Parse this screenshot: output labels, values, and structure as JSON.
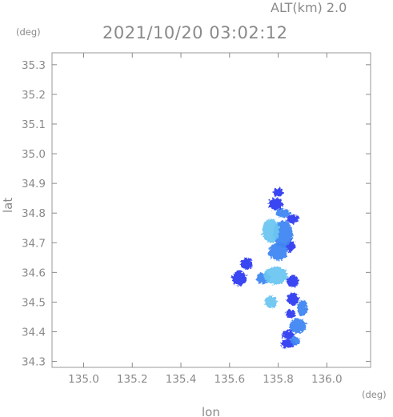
{
  "header": {
    "altitude_label": "ALT(km) 2.0",
    "timestamp": "2021/10/20 03:02:12"
  },
  "chart_data": {
    "type": "heatmap",
    "title": "2021/10/20 03:02:12",
    "subtitle": "ALT(km) 2.0",
    "xlabel": "lon",
    "ylabel": "lat",
    "x_unit": "(deg)",
    "y_unit": "(deg)",
    "xlim": [
      134.87,
      136.18
    ],
    "ylim": [
      34.28,
      35.34
    ],
    "x_ticks": [
      "135.0",
      "135.2",
      "135.4",
      "135.6",
      "135.8",
      "136.0"
    ],
    "y_ticks": [
      "34.3",
      "34.4",
      "34.5",
      "34.6",
      "34.7",
      "34.8",
      "34.9",
      "35.0",
      "35.1",
      "35.2",
      "35.3"
    ],
    "grid": false,
    "colors": {
      "low": "#2f3df0",
      "mid": "#3f86f2",
      "high": "#6cc6f0",
      "axis": "#8a8a8a"
    },
    "echo_cells": [
      {
        "lon": 135.8,
        "lat": 34.87,
        "r_lon": 0.02,
        "r_lat": 0.015,
        "level": 1
      },
      {
        "lon": 135.79,
        "lat": 34.83,
        "r_lon": 0.03,
        "r_lat": 0.02,
        "level": 1
      },
      {
        "lon": 135.82,
        "lat": 34.8,
        "r_lon": 0.03,
        "r_lat": 0.015,
        "level": 2
      },
      {
        "lon": 135.86,
        "lat": 34.78,
        "r_lon": 0.025,
        "r_lat": 0.015,
        "level": 1
      },
      {
        "lon": 135.77,
        "lat": 34.74,
        "r_lon": 0.035,
        "r_lat": 0.04,
        "level": 3
      },
      {
        "lon": 135.82,
        "lat": 34.73,
        "r_lon": 0.04,
        "r_lat": 0.045,
        "level": 2
      },
      {
        "lon": 135.8,
        "lat": 34.67,
        "r_lon": 0.04,
        "r_lat": 0.03,
        "level": 2
      },
      {
        "lon": 135.85,
        "lat": 34.69,
        "r_lon": 0.02,
        "r_lat": 0.02,
        "level": 1
      },
      {
        "lon": 135.67,
        "lat": 34.63,
        "r_lon": 0.025,
        "r_lat": 0.02,
        "level": 1
      },
      {
        "lon": 135.64,
        "lat": 34.58,
        "r_lon": 0.03,
        "r_lat": 0.025,
        "level": 1
      },
      {
        "lon": 135.79,
        "lat": 34.59,
        "r_lon": 0.05,
        "r_lat": 0.03,
        "level": 3
      },
      {
        "lon": 135.74,
        "lat": 34.58,
        "r_lon": 0.03,
        "r_lat": 0.02,
        "level": 2
      },
      {
        "lon": 135.86,
        "lat": 34.57,
        "r_lon": 0.025,
        "r_lat": 0.02,
        "level": 1
      },
      {
        "lon": 135.77,
        "lat": 34.5,
        "r_lon": 0.025,
        "r_lat": 0.02,
        "level": 3
      },
      {
        "lon": 135.86,
        "lat": 34.51,
        "r_lon": 0.025,
        "r_lat": 0.02,
        "level": 1
      },
      {
        "lon": 135.9,
        "lat": 34.48,
        "r_lon": 0.02,
        "r_lat": 0.03,
        "level": 2
      },
      {
        "lon": 135.85,
        "lat": 34.46,
        "r_lon": 0.02,
        "r_lat": 0.015,
        "level": 1
      },
      {
        "lon": 135.88,
        "lat": 34.42,
        "r_lon": 0.035,
        "r_lat": 0.025,
        "level": 2
      },
      {
        "lon": 135.84,
        "lat": 34.39,
        "r_lon": 0.025,
        "r_lat": 0.015,
        "level": 1
      },
      {
        "lon": 135.84,
        "lat": 34.36,
        "r_lon": 0.03,
        "r_lat": 0.015,
        "level": 1
      },
      {
        "lon": 135.87,
        "lat": 34.37,
        "r_lon": 0.02,
        "r_lat": 0.015,
        "level": 2
      }
    ]
  }
}
